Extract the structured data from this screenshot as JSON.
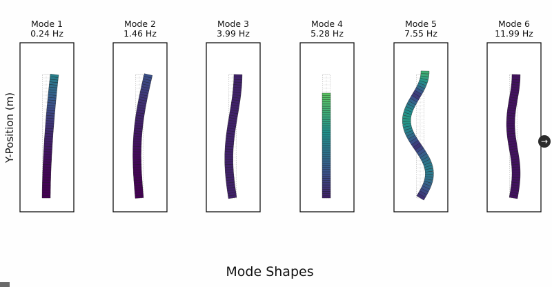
{
  "figure": {
    "y_axis_label": "Y-Position (m)",
    "x_axis_label": "Mode Shapes",
    "next_icon": "arrow-right-icon",
    "colormap": [
      "#440154",
      "#3b528b",
      "#21918c",
      "#5ec962",
      "#b5de2b"
    ],
    "reference_color": "#c8c8c8"
  },
  "modes": [
    {
      "name": "Mode 1",
      "frequency": "0.24 Hz"
    },
    {
      "name": "Mode 2",
      "frequency": "1.46 Hz"
    },
    {
      "name": "Mode 3",
      "frequency": "3.99 Hz"
    },
    {
      "name": "Mode 4",
      "frequency": "5.28 Hz"
    },
    {
      "name": "Mode 5",
      "frequency": "7.55 Hz"
    },
    {
      "name": "Mode 6",
      "frequency": "11.99 Hz"
    }
  ]
}
